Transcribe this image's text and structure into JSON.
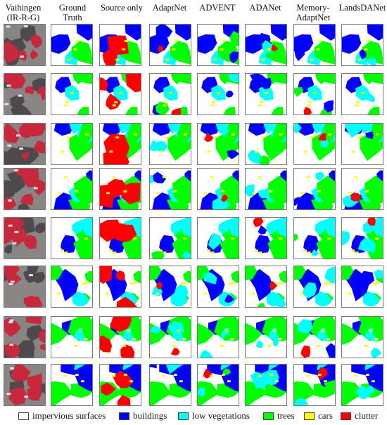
{
  "headers": [
    "Vaihingen\n(IR-R-G)",
    "Ground\nTruth",
    "Source only",
    "AdaptNet",
    "ADVENT",
    "ADANet",
    "Memory-\nAdaptNet",
    "LandsDANet"
  ],
  "legend": [
    {
      "label": "impervious surfaces",
      "color": "#ffffff"
    },
    {
      "label": "buildings",
      "color": "#0000ff"
    },
    {
      "label": "low vegetations",
      "color": "#00ffff"
    },
    {
      "label": "trees",
      "color": "#00ff00"
    },
    {
      "label": "cars",
      "color": "#ffff00"
    },
    {
      "label": "clutter",
      "color": "#ff0000"
    }
  ],
  "row_count": 8,
  "colors": {
    "impervious": "#ffffff",
    "building": "#0000ff",
    "lowveg": "#00ffff",
    "tree": "#00ff00",
    "car": "#ffff00",
    "clutter": "#ff0000",
    "photo_red": "#c8283c",
    "photo_gray": "#6e6a6a"
  }
}
